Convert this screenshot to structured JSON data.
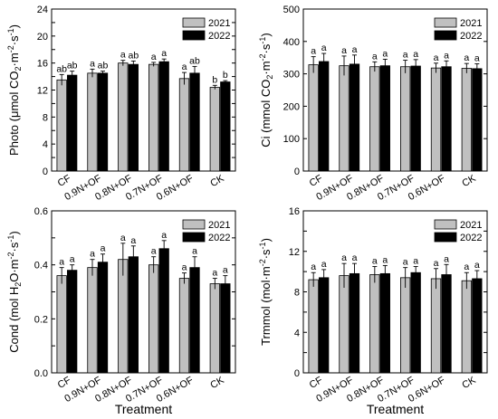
{
  "chart_data": [
    {
      "type": "bar",
      "ylabel_main": "Photo (μmol CO",
      "ylabel_sub1": "2",
      "ylabel_mid": "·m",
      "ylabel_sup": "-2",
      "ylabel_mid2": "·s",
      "ylabel_sup2": "-1",
      "ylabel_end": ")",
      "xlabel": "",
      "categories": [
        "CF",
        "0.9N+OF",
        "0.8N+OF",
        "0.7N+OF",
        "0.6N+OF",
        "CK"
      ],
      "ylim": [
        0,
        24
      ],
      "yticks": [
        0,
        2,
        4,
        6,
        8,
        10,
        12,
        14,
        16,
        18,
        20,
        22,
        24
      ],
      "ytick_labels": [
        "0",
        "",
        "4",
        "",
        "8",
        "",
        "12",
        "",
        "16",
        "",
        "20",
        "",
        "24"
      ],
      "legend_position": "top-right",
      "series": [
        {
          "name": "2021",
          "color": "#c0c0c0",
          "values": [
            13.5,
            14.5,
            16.0,
            15.8,
            13.7,
            12.4
          ],
          "errors": [
            0.8,
            0.6,
            0.4,
            0.3,
            0.9,
            0.3
          ],
          "letters": [
            "ab",
            "a",
            "a",
            "a",
            "a",
            "b"
          ]
        },
        {
          "name": "2022",
          "color": "#000000",
          "values": [
            14.2,
            14.5,
            15.8,
            16.2,
            14.5,
            13.2
          ],
          "errors": [
            0.6,
            0.3,
            0.5,
            0.4,
            1.0,
            0.2
          ],
          "letters": [
            "ab",
            "ab",
            "ab",
            "a",
            "ab",
            "b"
          ]
        }
      ]
    },
    {
      "type": "bar",
      "ylabel_main": "Ci (mmol CO",
      "ylabel_sub1": "2",
      "ylabel_mid": "·m",
      "ylabel_sup": "-2",
      "ylabel_mid2": "·s",
      "ylabel_sup2": "-1",
      "ylabel_end": ")",
      "xlabel": "",
      "categories": [
        "CF",
        "0.9N+OF",
        "0.8N+OF",
        "0.7N+OF",
        "0.6N+OF",
        "CK"
      ],
      "ylim": [
        0,
        500
      ],
      "yticks": [
        0,
        100,
        200,
        300,
        400,
        500
      ],
      "ytick_labels": [
        "0",
        "100",
        "200",
        "300",
        "400",
        "500"
      ],
      "legend_position": "top-right",
      "series": [
        {
          "name": "2021",
          "color": "#c0c0c0",
          "values": [
            328,
            325,
            322,
            322,
            318,
            317
          ],
          "errors": [
            25,
            30,
            15,
            20,
            15,
            15
          ],
          "letters": [
            "a",
            "a",
            "a",
            "a",
            "a",
            "a"
          ]
        },
        {
          "name": "2022",
          "color": "#000000",
          "values": [
            338,
            330,
            325,
            324,
            322,
            316
          ],
          "errors": [
            25,
            28,
            20,
            20,
            18,
            15
          ],
          "letters": [
            "a",
            "a",
            "a",
            "a",
            "a",
            "a"
          ]
        }
      ]
    },
    {
      "type": "bar",
      "ylabel_main": "Cond (mol H",
      "ylabel_sub1": "2",
      "ylabel_mid": "O·m",
      "ylabel_sup": "-2",
      "ylabel_mid2": "·s",
      "ylabel_sup2": "-1",
      "ylabel_end": ")",
      "xlabel": "Treatment",
      "categories": [
        "CF",
        "0.9N+OF",
        "0.8N+OF",
        "0.7N+OF",
        "0.6N+OF",
        "CK"
      ],
      "ylim": [
        0,
        0.6
      ],
      "yticks": [
        0,
        0.1,
        0.2,
        0.3,
        0.4,
        0.5,
        0.6
      ],
      "ytick_labels": [
        "0.0",
        "",
        "0.2",
        "",
        "0.4",
        "",
        "0.6"
      ],
      "legend_position": "top-right",
      "series": [
        {
          "name": "2021",
          "color": "#c0c0c0",
          "values": [
            0.36,
            0.39,
            0.42,
            0.4,
            0.35,
            0.33
          ],
          "errors": [
            0.03,
            0.03,
            0.06,
            0.03,
            0.02,
            0.02
          ],
          "letters": [
            "a",
            "a",
            "a",
            "a",
            "a",
            "a"
          ]
        },
        {
          "name": "2022",
          "color": "#000000",
          "values": [
            0.38,
            0.41,
            0.43,
            0.46,
            0.39,
            0.33
          ],
          "errors": [
            0.02,
            0.03,
            0.04,
            0.03,
            0.04,
            0.03
          ],
          "letters": [
            "a",
            "a",
            "a",
            "a",
            "a",
            "a"
          ]
        }
      ]
    },
    {
      "type": "bar",
      "ylabel_main": "Trmmol (mol·m",
      "ylabel_sub1": "",
      "ylabel_mid": "",
      "ylabel_sup": "-2",
      "ylabel_mid2": "·s",
      "ylabel_sup2": "-1",
      "ylabel_end": ")",
      "xlabel": "Treatment",
      "categories": [
        "CF",
        "0.9N+OF",
        "0.8N+OF",
        "0.7N+OF",
        "0.6N+OF",
        "CK"
      ],
      "ylim": [
        0,
        16
      ],
      "yticks": [
        0,
        2,
        4,
        6,
        8,
        10,
        12,
        14,
        16
      ],
      "ytick_labels": [
        "0",
        "",
        "4",
        "",
        "8",
        "",
        "12",
        "",
        "16"
      ],
      "legend_position": "top-right",
      "series": [
        {
          "name": "2021",
          "color": "#c0c0c0",
          "values": [
            9.2,
            9.6,
            9.7,
            9.4,
            9.3,
            9.1
          ],
          "errors": [
            0.7,
            1.2,
            0.8,
            1.0,
            1.0,
            0.8
          ],
          "letters": [
            "a",
            "a",
            "a",
            "a",
            "a",
            "a"
          ]
        },
        {
          "name": "2022",
          "color": "#000000",
          "values": [
            9.4,
            9.8,
            9.8,
            9.9,
            9.7,
            9.3
          ],
          "errors": [
            0.8,
            1.0,
            0.8,
            0.6,
            1.0,
            0.8
          ],
          "letters": [
            "a",
            "a",
            "a",
            "a",
            "a",
            "a"
          ]
        }
      ]
    }
  ]
}
